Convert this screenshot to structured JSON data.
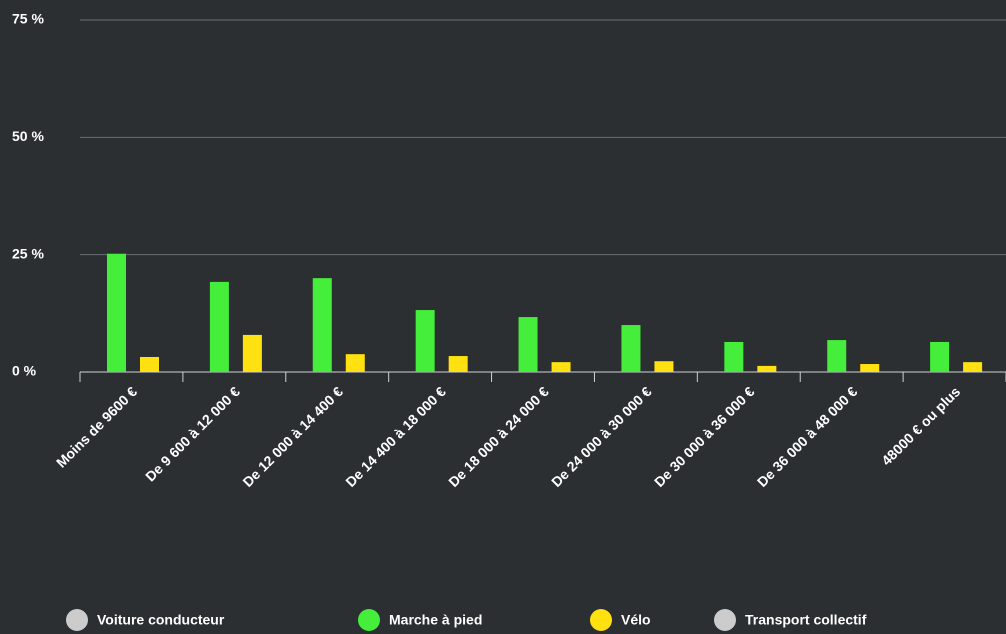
{
  "chart_data": {
    "type": "bar",
    "categories": [
      "Moins de 9600 €",
      "De 9 600 à 12 000 €",
      "De 12 000 à 14 400 €",
      "De 14 400 à 18 000 €",
      "De 18 000 à 24 000 €",
      "De 24 000 à 30 000 €",
      "De 30 000 à 36 000 €",
      "De 36 000 à 48 000 €",
      "48000 € ou plus"
    ],
    "series": [
      {
        "name": "Voiture conducteur",
        "color": "#cccccc",
        "visible": false
      },
      {
        "name": "Marche à pied",
        "color": "#44ee3a",
        "values": [
          25.2,
          19.2,
          20,
          13.2,
          11.7,
          10,
          6.4,
          6.8,
          6.4
        ]
      },
      {
        "name": "Vélo",
        "color": "#ffe010",
        "values": [
          3.2,
          7.9,
          3.8,
          3.4,
          2.1,
          2.3,
          1.3,
          1.7,
          2.1
        ]
      },
      {
        "name": "Transport collectif",
        "color": "#cccccc",
        "visible": false
      }
    ],
    "ylim": [
      0,
      75
    ],
    "yticks": [
      {
        "value": 0,
        "label": "0 %"
      },
      {
        "value": 25,
        "label": "25 %"
      },
      {
        "value": 50,
        "label": "50 %"
      },
      {
        "value": 75,
        "label": "75 %"
      }
    ],
    "grid": true
  }
}
